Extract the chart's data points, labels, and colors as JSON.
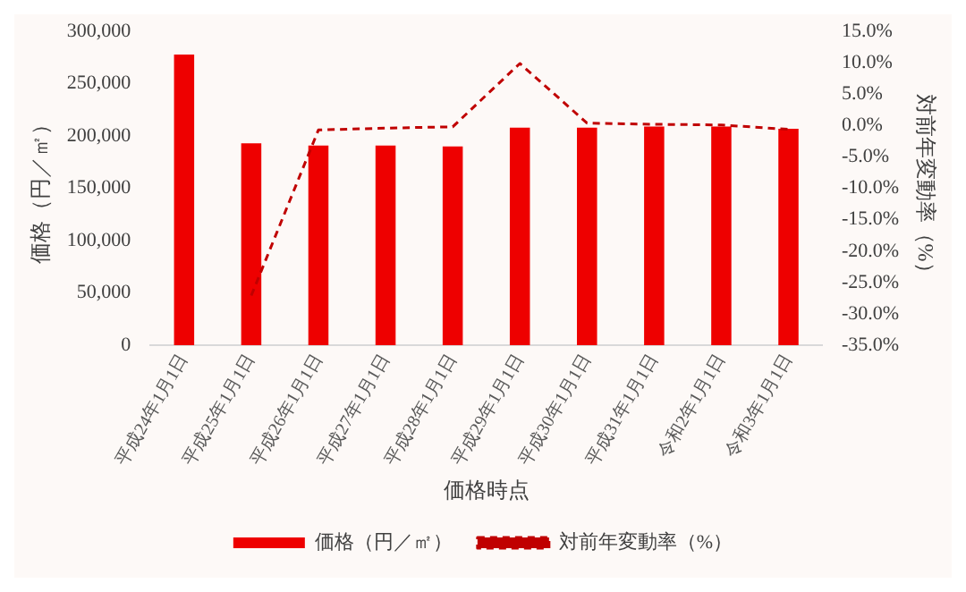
{
  "chart_data": {
    "type": "bar",
    "xlabel": "価格時点",
    "ylabel": "価格（円／㎡）",
    "y2label": "対前年変動率（%）",
    "categories": [
      "平成24年1月1日",
      "平成25年1月1日",
      "平成26年1月1日",
      "平成27年1月1日",
      "平成28年1月1日",
      "平成29年1月1日",
      "平成30年1月1日",
      "平成31年1月1日",
      "令和2年1月1日",
      "令和3年1月1日"
    ],
    "series": [
      {
        "name": "価格（円／㎡）",
        "color": "#ee0000",
        "values": [
          278000,
          193000,
          191000,
          191000,
          190000,
          208000,
          208000,
          209000,
          209000,
          207000
        ]
      },
      {
        "name": "対前年変動率（%）",
        "type": "line",
        "axis": "y2",
        "color": "#c00000",
        "line_style": "dashed",
        "marker": "none",
        "values": [
          null,
          -27.1,
          -0.7,
          -0.4,
          -0.2,
          9.9,
          0.4,
          0.2,
          0.1,
          -0.6
        ]
      }
    ],
    "ylim": [
      0,
      300000
    ],
    "yticks": [
      0,
      {
        "value": 50000,
        "label": "50,000"
      },
      {
        "value": 100000,
        "label": "100,000"
      },
      {
        "value": 150000,
        "label": "150,000"
      },
      {
        "value": 200000,
        "label": "200,000"
      },
      {
        "value": 250000,
        "label": "250,000"
      },
      {
        "value": 300000,
        "label": "300,000"
      }
    ],
    "y2lim": [
      -35,
      15
    ],
    "y2ticks": [
      {
        "value": -35,
        "label": "-35.0%"
      },
      {
        "value": -30,
        "label": "-30.0%"
      },
      {
        "value": -25,
        "label": "-25.0%"
      },
      {
        "value": -20,
        "label": "-20.0%"
      },
      {
        "value": -15,
        "label": "-15.0%"
      },
      {
        "value": -10,
        "label": "-10.0%"
      },
      {
        "value": -5,
        "label": "-5.0%"
      },
      {
        "value": 0,
        "label": "0.0%"
      },
      {
        "value": 5,
        "label": "5.0%"
      },
      {
        "value": 10,
        "label": "10.0%"
      },
      {
        "value": 15,
        "label": "15.0%"
      }
    ],
    "grid": false,
    "legend": "bottom"
  }
}
